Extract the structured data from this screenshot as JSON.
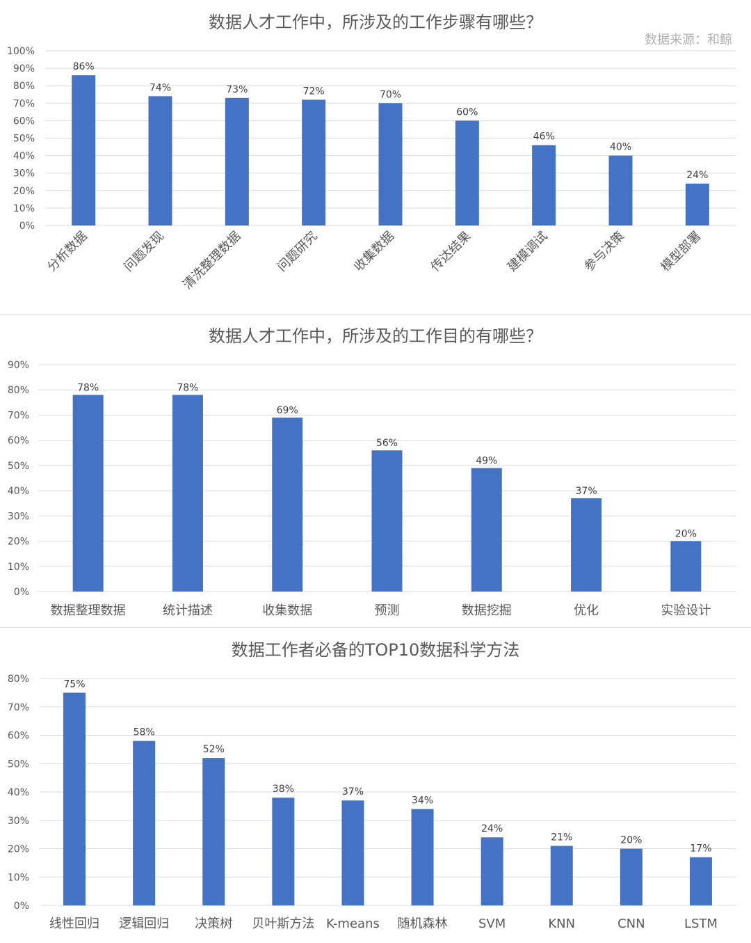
{
  "chart_data": [
    {
      "type": "bar",
      "title": "数据人才工作中，所涉及的工作步骤有哪些？",
      "source": "数据来源：和鲸",
      "categories": [
        "分析数据",
        "问题发现",
        "清洗整理数据",
        "问题研究",
        "收集数据",
        "传达结果",
        "建模调试",
        "参与决策",
        "模型部署"
      ],
      "values": [
        86,
        74,
        73,
        72,
        70,
        60,
        46,
        40,
        24
      ],
      "value_labels": [
        "86%",
        "74%",
        "73%",
        "72%",
        "70%",
        "60%",
        "46%",
        "40%",
        "24%"
      ],
      "yticks": [
        "0%",
        "10%",
        "20%",
        "30%",
        "40%",
        "50%",
        "60%",
        "70%",
        "80%",
        "90%",
        "100%"
      ],
      "ylim": [
        0,
        100
      ],
      "grid": true,
      "color": "#4472c4"
    },
    {
      "type": "bar",
      "title": "数据人才工作中，所涉及的工作目的有哪些？",
      "categories": [
        "数据整理数据",
        "统计描述",
        "收集数据",
        "预测",
        "数据挖掘",
        "优化",
        "实验设计"
      ],
      "values": [
        78,
        78,
        69,
        56,
        49,
        37,
        20
      ],
      "value_labels": [
        "78%",
        "78%",
        "69%",
        "56%",
        "49%",
        "37%",
        "20%"
      ],
      "yticks": [
        "0%",
        "10%",
        "20%",
        "30%",
        "40%",
        "50%",
        "60%",
        "70%",
        "80%",
        "90%"
      ],
      "ylim": [
        0,
        90
      ],
      "grid": true,
      "color": "#4472c4"
    },
    {
      "type": "bar",
      "title": "数据工作者必备的TOP10数据科学方法",
      "categories": [
        "线性回归",
        "逻辑回归",
        "决策树",
        "贝叶斯方法",
        "K-means",
        "随机森林",
        "SVM",
        "KNN",
        "CNN",
        "LSTM"
      ],
      "values": [
        75,
        58,
        52,
        38,
        37,
        34,
        24,
        21,
        20,
        17
      ],
      "value_labels": [
        "75%",
        "58%",
        "52%",
        "38%",
        "37%",
        "34%",
        "24%",
        "21%",
        "20%",
        "17%"
      ],
      "yticks": [
        "0%",
        "10%",
        "20%",
        "30%",
        "40%",
        "50%",
        "60%",
        "70%",
        "80%"
      ],
      "ylim": [
        0,
        80
      ],
      "grid": true,
      "color": "#4472c4"
    }
  ]
}
